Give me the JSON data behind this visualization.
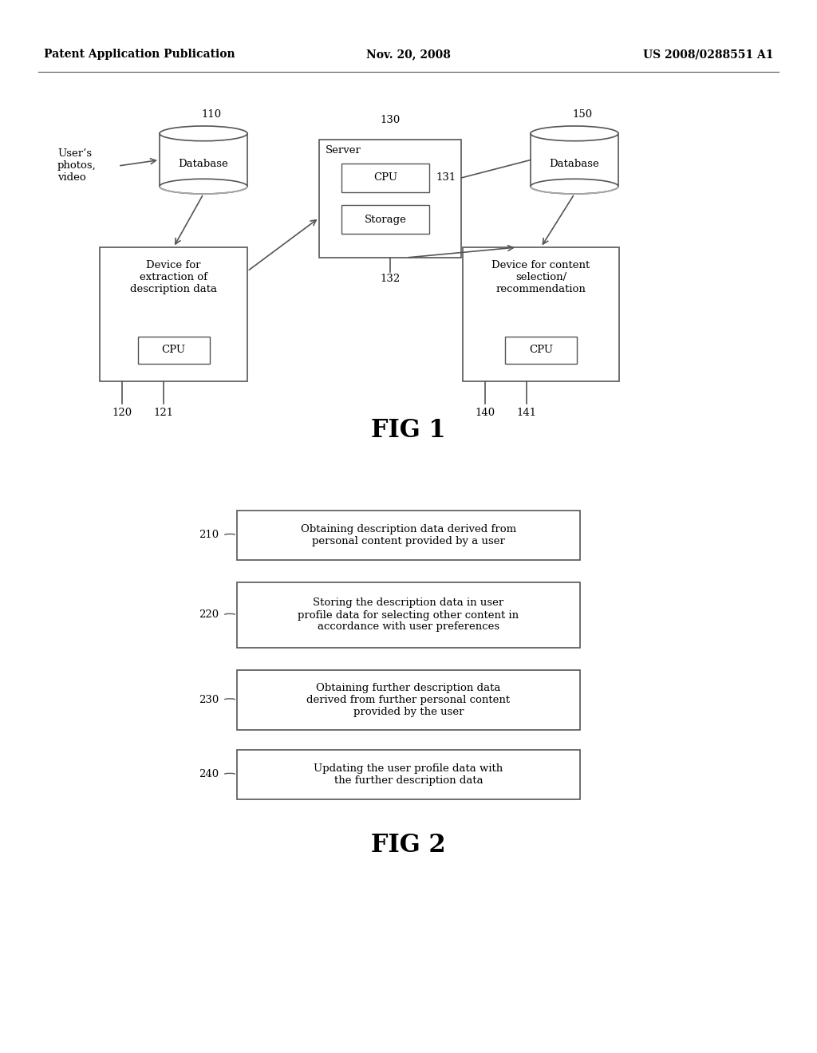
{
  "bg_color": "#ffffff",
  "header_left": "Patent Application Publication",
  "header_center": "Nov. 20, 2008",
  "header_right": "US 2008/0288551 A1",
  "fig1_label": "FIG 1",
  "fig2_label": "FIG 2",
  "fig2_steps": [
    {
      "number": "210",
      "text": "Obtaining description data derived from\npersonal content provided by a user"
    },
    {
      "number": "220",
      "text": "Storing the description data in user\nprofile data for selecting other content in\naccordance with user preferences"
    },
    {
      "number": "230",
      "text": "Obtaining further description data\nderived from further personal content\nprovided by the user"
    },
    {
      "number": "240",
      "text": "Updating the user profile data with\nthe further description data"
    }
  ]
}
